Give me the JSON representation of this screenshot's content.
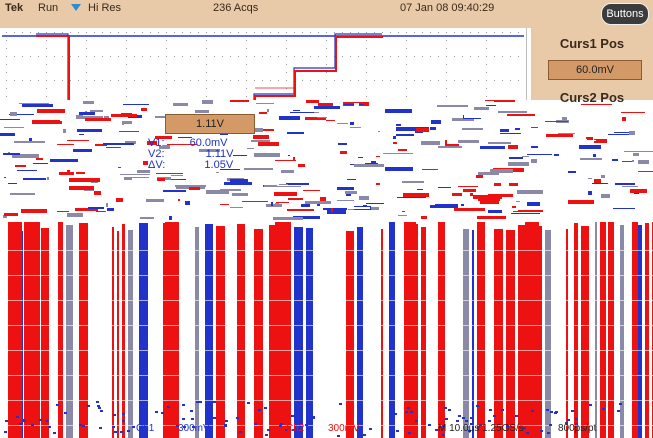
{
  "status_bar": {
    "brand": "Tek",
    "run_state": "Run",
    "acq_mode": "Hi Res",
    "acq_count": "236 Acqs",
    "datetime": "07 Jan 08 09:40:29",
    "buttons_label": "Buttons"
  },
  "side_menu": {
    "curs1_title": "Curs1 Pos",
    "curs1_value": "60.0mV",
    "curs2_title": "Curs2 Pos"
  },
  "cursor_box_value": "1.11V",
  "cursor_readout": {
    "v1_label": "V1:",
    "v1_value": "60.0mV",
    "v2_label": "V2:",
    "v2_value": "1.11V",
    "dv_label": "ΔV:",
    "dv_value": "1.05V"
  },
  "bottom_status": {
    "ch1_label": "Ch1",
    "ch1_scale": "300mV",
    "ch2_label": "Ch2",
    "ch2_scale": "300mV",
    "timebase": "M 10.0µs 1.25GS/s",
    "point_time": "800ps/pt"
  },
  "colors": {
    "ch1": "#2233cc",
    "ch2": "#ee1111",
    "menu_bg": "#e8c9a8",
    "menu_value_bg": "#d39a68"
  }
}
